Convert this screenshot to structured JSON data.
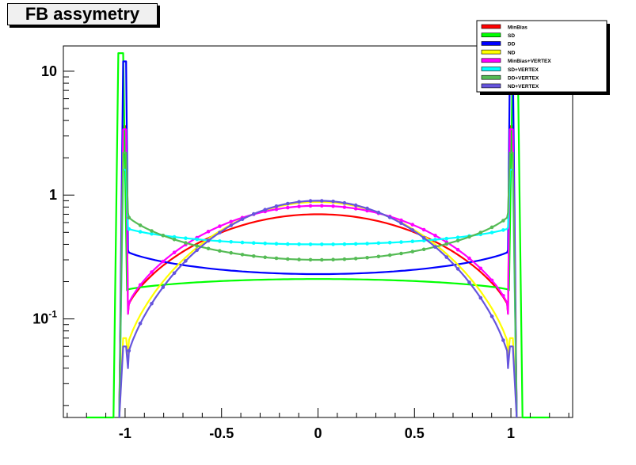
{
  "chart_data": {
    "type": "line",
    "title": "FB assymetry",
    "xlabel": "",
    "ylabel": "",
    "xlim": [
      -1.32,
      1.32
    ],
    "ylim": [
      0.016,
      16
    ],
    "yscale": "log",
    "grid": false,
    "legend_position": "top-right",
    "x_ticks": [
      {
        "value": -1,
        "label": "-1"
      },
      {
        "value": -0.5,
        "label": "-0.5"
      },
      {
        "value": 0,
        "label": "0"
      },
      {
        "value": 0.5,
        "label": "0.5"
      },
      {
        "value": 1,
        "label": "1"
      }
    ],
    "y_ticks": [
      {
        "value": 10,
        "label": "10"
      },
      {
        "value": 1,
        "label": "1"
      },
      {
        "value": 0.1,
        "label": "10-1"
      }
    ],
    "series": [
      {
        "name": "MinBias",
        "color": "#ff0000",
        "marker": false,
        "mode": "inner",
        "center": 0.7,
        "edge": 0.11,
        "spike": 3.6
      },
      {
        "name": "SD",
        "color": "#00ff00",
        "marker": false,
        "mode": "outer",
        "center": 0.21,
        "edge": 0.17,
        "spike": 14
      },
      {
        "name": "DD",
        "color": "#0000ff",
        "marker": false,
        "mode": "inner",
        "center": 0.23,
        "edge": 0.36,
        "spike": 12
      },
      {
        "name": "ND",
        "color": "#ffff00",
        "marker": false,
        "mode": "inner",
        "center": 0.88,
        "edge": 0.05,
        "spike": 0.07
      },
      {
        "name": "MinBias+VERTEX",
        "color": "#ff00ff",
        "marker": true,
        "mode": "inner",
        "center": 0.82,
        "edge": 0.11,
        "spike": 3.4
      },
      {
        "name": "SD+VERTEX",
        "color": "#00ffff",
        "marker": true,
        "mode": "inner",
        "center": 0.4,
        "edge": 0.55,
        "spike": 1.6
      },
      {
        "name": "DD+VERTEX",
        "color": "#55bb55",
        "marker": true,
        "mode": "inner",
        "center": 0.3,
        "edge": 0.72,
        "spike": 2.2
      },
      {
        "name": "ND+VERTEX",
        "color": "#6655dd",
        "marker": true,
        "mode": "inner",
        "center": 0.9,
        "edge": 0.04,
        "spike": 0.06
      }
    ]
  }
}
